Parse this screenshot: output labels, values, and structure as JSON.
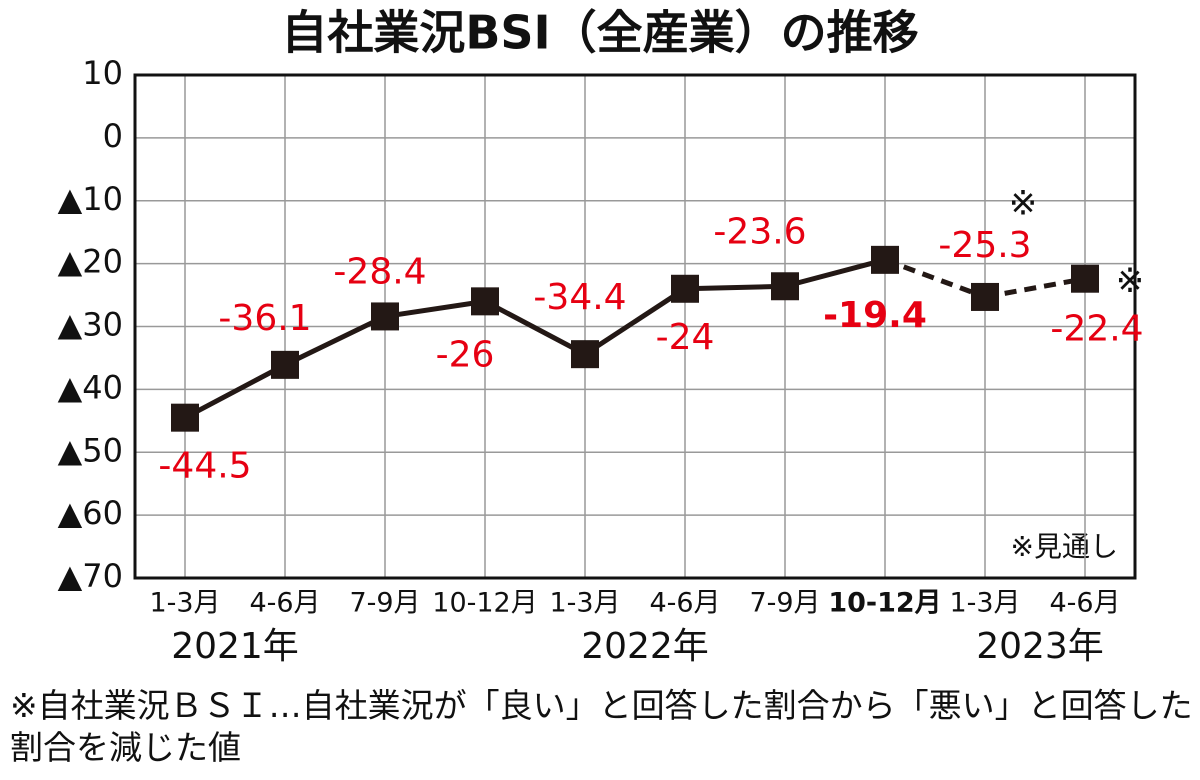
{
  "chart_data": {
    "type": "line",
    "title": "自社業況BSI（全産業）の推移",
    "categories": [
      "1-3月",
      "4-6月",
      "7-9月",
      "10-12月",
      "1-3月",
      "4-6月",
      "7-9月",
      "10-12月",
      "1-3月",
      "4-6月"
    ],
    "category_bold": [
      false,
      false,
      false,
      false,
      false,
      false,
      false,
      true,
      false,
      false
    ],
    "x_group_labels": [
      "2021年",
      "2022年",
      "2023年"
    ],
    "series": [
      {
        "color": "#231815",
        "values": [
          -44.5,
          -36.1,
          -28.4,
          -26.0,
          -34.4,
          -24.0,
          -23.6,
          -19.4,
          -25.3,
          -22.4
        ],
        "dashed": [
          false,
          false,
          false,
          false,
          false,
          false,
          false,
          false,
          true,
          true
        ],
        "label_color": "#e60012",
        "label_bold": [
          false,
          false,
          false,
          false,
          false,
          false,
          false,
          true,
          false,
          false
        ]
      }
    ],
    "point_notes": [
      null,
      null,
      null,
      null,
      null,
      null,
      null,
      null,
      "※",
      "※"
    ],
    "note": "※見通し",
    "ylim": [
      -70,
      10
    ],
    "yticks": [
      10,
      0,
      {
        "value": -10,
        "label": "▲10"
      },
      {
        "value": -20,
        "label": "▲20"
      },
      {
        "value": -30,
        "label": "▲30"
      },
      {
        "value": -40,
        "label": "▲40"
      },
      {
        "value": -50,
        "label": "▲50"
      },
      {
        "value": -60,
        "label": "▲60"
      },
      {
        "value": -70,
        "label": "▲70"
      }
    ],
    "grid": true,
    "footnote": "※自社業況ＢＳＩ…自社業況が「良い」と回答した割合から「悪い」と回答した割合を減じた値"
  }
}
